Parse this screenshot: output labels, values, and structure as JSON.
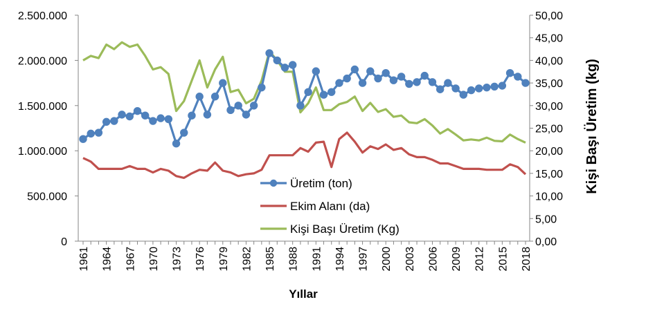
{
  "chart_data": {
    "type": "line",
    "xlabel": "Yıllar",
    "ylabel_left": "",
    "ylabel_right": "Kişi Başı Üretim (kg)",
    "x": [
      1961,
      1962,
      1963,
      1964,
      1965,
      1966,
      1967,
      1968,
      1969,
      1970,
      1971,
      1972,
      1973,
      1974,
      1975,
      1976,
      1977,
      1978,
      1979,
      1980,
      1981,
      1982,
      1983,
      1984,
      1985,
      1986,
      1987,
      1988,
      1989,
      1990,
      1991,
      1992,
      1993,
      1994,
      1995,
      1996,
      1997,
      1998,
      1999,
      2000,
      2001,
      2002,
      2003,
      2004,
      2005,
      2006,
      2007,
      2008,
      2009,
      2010,
      2011,
      2012,
      2013,
      2014,
      2015,
      2016,
      2017,
      2018
    ],
    "x_tick_labels": [
      "1961",
      "1964",
      "1967",
      "1970",
      "1973",
      "1976",
      "1979",
      "1982",
      "1985",
      "1988",
      "1991",
      "1994",
      "1997",
      "2000",
      "2003",
      "2006",
      "2009",
      "2012",
      "2015",
      "2018"
    ],
    "y_left_ticks": [
      "0",
      "500.000",
      "1.000.000",
      "1.500.000",
      "2.000.000",
      "2.500.000"
    ],
    "y_right_ticks": [
      "0,00",
      "5,00",
      "10,00",
      "15,00",
      "20,00",
      "25,00",
      "30,00",
      "35,00",
      "40,00",
      "45,00",
      "50,00"
    ],
    "ylim_left": [
      0,
      2500000
    ],
    "ylim_right": [
      0,
      50
    ],
    "grid": false,
    "legend_position": "center",
    "series": [
      {
        "name": "Üretim (ton)",
        "axis": "left",
        "color": "#4f81bd",
        "marker": "circle",
        "values": [
          1130000,
          1190000,
          1200000,
          1320000,
          1330000,
          1400000,
          1380000,
          1440000,
          1390000,
          1330000,
          1360000,
          1350000,
          1080000,
          1200000,
          1390000,
          1600000,
          1400000,
          1600000,
          1750000,
          1450000,
          1500000,
          1400000,
          1500000,
          1700000,
          2080000,
          2000000,
          1920000,
          1950000,
          1500000,
          1650000,
          1880000,
          1620000,
          1650000,
          1750000,
          1800000,
          1900000,
          1750000,
          1880000,
          1800000,
          1860000,
          1780000,
          1820000,
          1740000,
          1760000,
          1830000,
          1760000,
          1680000,
          1750000,
          1690000,
          1620000,
          1670000,
          1690000,
          1700000,
          1710000,
          1720000,
          1860000,
          1820000,
          1750000
        ]
      },
      {
        "name": "Ekim Alanı (da)",
        "axis": "left",
        "color": "#c0504d",
        "marker": "none",
        "values": [
          920000,
          880000,
          800000,
          800000,
          800000,
          800000,
          830000,
          800000,
          800000,
          760000,
          800000,
          780000,
          720000,
          700000,
          750000,
          790000,
          780000,
          870000,
          780000,
          760000,
          720000,
          740000,
          750000,
          790000,
          950000,
          950000,
          950000,
          950000,
          1030000,
          990000,
          1090000,
          1100000,
          820000,
          1130000,
          1200000,
          1100000,
          980000,
          1050000,
          1020000,
          1070000,
          1010000,
          1030000,
          960000,
          930000,
          930000,
          900000,
          860000,
          860000,
          830000,
          800000,
          800000,
          800000,
          790000,
          790000,
          790000,
          850000,
          820000,
          740000
        ]
      },
      {
        "name": "Kişi Başı Üretim (Kg)",
        "axis": "right",
        "color": "#9bbb59",
        "marker": "none",
        "values": [
          40.0,
          41.0,
          40.5,
          43.5,
          42.5,
          44.0,
          43.0,
          43.5,
          41.0,
          38.0,
          38.5,
          37.0,
          28.8,
          31.0,
          35.5,
          40.0,
          34.0,
          38.0,
          40.8,
          33.0,
          33.5,
          30.5,
          31.5,
          35.5,
          42.0,
          40.0,
          37.5,
          37.5,
          28.5,
          30.5,
          34.0,
          29.0,
          29.0,
          30.3,
          30.8,
          32.0,
          28.8,
          30.6,
          28.6,
          29.2,
          27.5,
          27.8,
          26.3,
          26.1,
          27.0,
          25.6,
          23.8,
          24.8,
          23.6,
          22.3,
          22.5,
          22.3,
          22.9,
          22.2,
          22.1,
          23.6,
          22.6,
          21.8
        ]
      }
    ]
  }
}
